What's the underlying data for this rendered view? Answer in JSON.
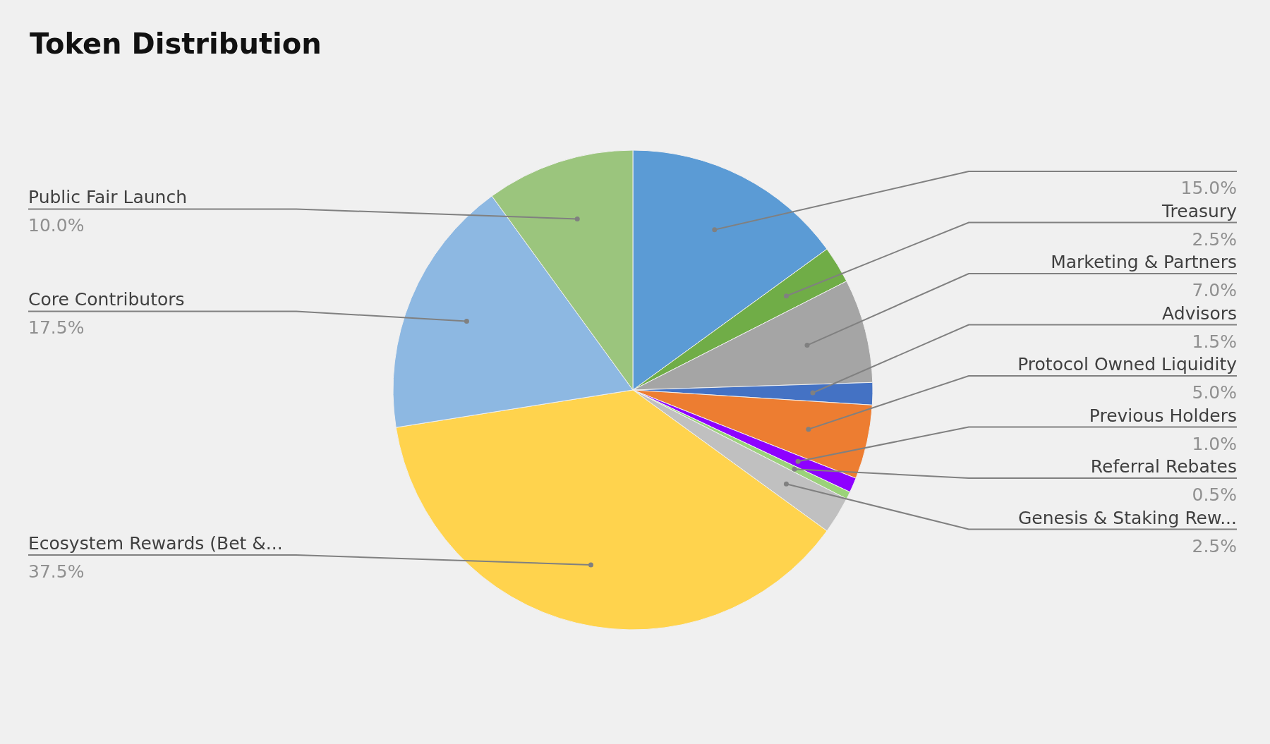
{
  "chart_data": {
    "type": "pie",
    "title": "Token Distribution",
    "categories": [
      null,
      "Treasury",
      "Marketing & Partners",
      "Advisors",
      "Protocol Owned Liquidity",
      "Previous Holders",
      "Referral Rebates",
      "Genesis & Staking Rew...",
      "Ecosystem Rewards (Bet &...",
      "Core Contributors",
      "Public Fair Launch"
    ],
    "values": [
      15,
      2.5,
      7,
      1.5,
      5,
      1,
      0.5,
      2.5,
      37.5,
      17.5,
      10
    ],
    "value_labels": [
      "15.0%",
      "2.5%",
      "7.0%",
      "1.5%",
      "5.0%",
      "1.0%",
      "0.5%",
      "2.5%",
      "37.5%",
      "17.5%",
      "10.0%"
    ],
    "colors": [
      "#5b9bd5",
      "#70ad47",
      "#a5a5a5",
      "#4472c4",
      "#ed7d31",
      "#8e00ff",
      "#9bd27a",
      "#c0c0c0",
      "#ffd34d",
      "#8db8e2",
      "#9bc57d"
    ]
  }
}
